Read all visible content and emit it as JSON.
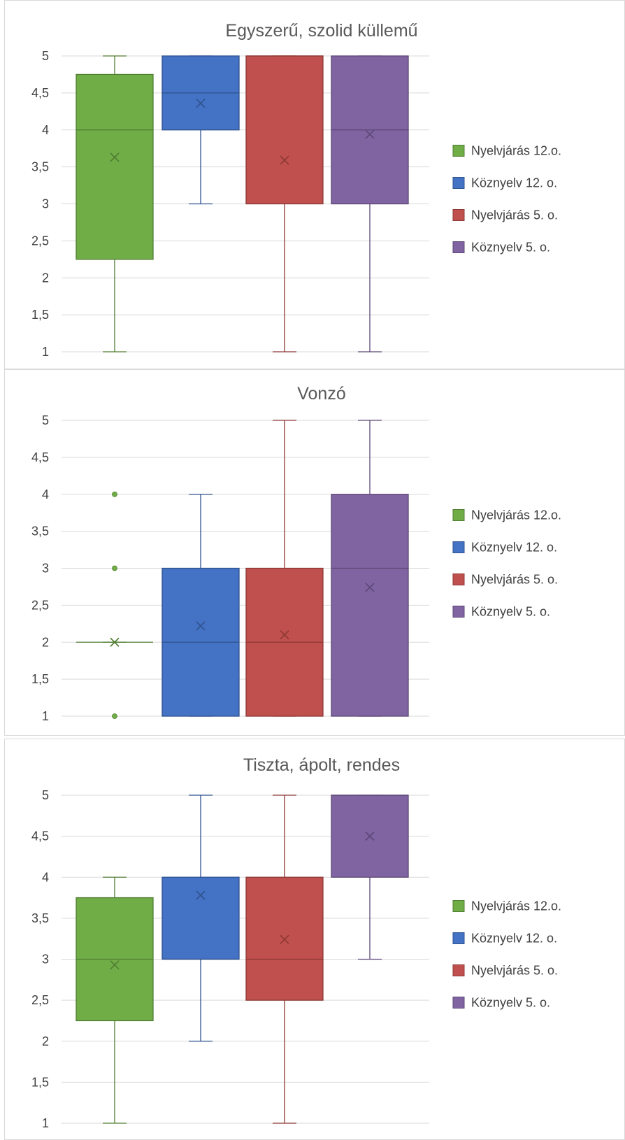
{
  "chart_data": [
    {
      "type": "boxplot",
      "title": "Egyszerű, szolid küllemű",
      "ylim": [
        1,
        5
      ],
      "yticks": [
        "1",
        "1,5",
        "2",
        "2,5",
        "3",
        "3,5",
        "4",
        "4,5",
        "5"
      ],
      "grid": true,
      "legend_position": "right",
      "series": [
        {
          "name": "Nyelvjárás 12.o.",
          "color": "#70ad47",
          "stroke": "#507e32",
          "min": 1,
          "q1": 2.25,
          "median": 4,
          "q3": 4.75,
          "max": 5,
          "mean": 3.63,
          "outliers": []
        },
        {
          "name": "Köznyelv 12. o.",
          "color": "#4472c4",
          "stroke": "#2f528f",
          "min": 3,
          "q1": 4,
          "median": 4.5,
          "q3": 5,
          "max": 5,
          "mean": 4.36,
          "outliers": []
        },
        {
          "name": "Nyelvjárás 5. o.",
          "color": "#c0504d",
          "stroke": "#8c3836",
          "min": 1,
          "q1": 3,
          "median": 5,
          "q3": 5,
          "max": 5,
          "mean": 3.59,
          "outliers": []
        },
        {
          "name": "Köznyelv 5. o.",
          "color": "#8064a2",
          "stroke": "#5c4776",
          "min": 1,
          "q1": 3,
          "median": 4,
          "q3": 5,
          "max": 5,
          "mean": 3.94,
          "outliers": []
        }
      ]
    },
    {
      "type": "boxplot",
      "title": "Vonzó",
      "ylim": [
        1,
        5
      ],
      "yticks": [
        "1",
        "1,5",
        "2",
        "2,5",
        "3",
        "3,5",
        "4",
        "4,5",
        "5"
      ],
      "grid": true,
      "legend_position": "right",
      "series": [
        {
          "name": "Nyelvjárás 12.o.",
          "color": "#70ad47",
          "stroke": "#507e32",
          "min": 2,
          "q1": 2,
          "median": 2,
          "q3": 2,
          "max": 2,
          "mean": 2,
          "outliers": [
            1,
            3,
            4
          ]
        },
        {
          "name": "Köznyelv 12. o.",
          "color": "#4472c4",
          "stroke": "#2f528f",
          "min": 1,
          "q1": 1,
          "median": 2,
          "q3": 3,
          "max": 4,
          "mean": 2.22,
          "outliers": []
        },
        {
          "name": "Nyelvjárás 5. o.",
          "color": "#c0504d",
          "stroke": "#8c3836",
          "min": 1,
          "q1": 1,
          "median": 2,
          "q3": 3,
          "max": 5,
          "mean": 2.1,
          "outliers": []
        },
        {
          "name": "Köznyelv 5. o.",
          "color": "#8064a2",
          "stroke": "#5c4776",
          "min": 1,
          "q1": 1,
          "median": 3,
          "q3": 4,
          "max": 5,
          "mean": 2.74,
          "outliers": []
        }
      ]
    },
    {
      "type": "boxplot",
      "title": "Tiszta, ápolt, rendes",
      "ylim": [
        1,
        5
      ],
      "yticks": [
        "1",
        "1,5",
        "2",
        "2,5",
        "3",
        "3,5",
        "4",
        "4,5",
        "5"
      ],
      "grid": true,
      "legend_position": "right",
      "series": [
        {
          "name": "Nyelvjárás 12.o.",
          "color": "#70ad47",
          "stroke": "#507e32",
          "min": 1,
          "q1": 2.25,
          "median": 3,
          "q3": 3.75,
          "max": 4,
          "mean": 2.93,
          "outliers": []
        },
        {
          "name": "Köznyelv 12. o.",
          "color": "#4472c4",
          "stroke": "#2f528f",
          "min": 2,
          "q1": 3,
          "median": 3,
          "q3": 4,
          "max": 5,
          "mean": 3.78,
          "outliers": []
        },
        {
          "name": "Nyelvjárás 5. o.",
          "color": "#c0504d",
          "stroke": "#8c3836",
          "min": 1,
          "q1": 2.5,
          "median": 3,
          "q3": 4,
          "max": 5,
          "mean": 3.24,
          "outliers": []
        },
        {
          "name": "Köznyelv 5. o.",
          "color": "#8064a2",
          "stroke": "#5c4776",
          "min": 3,
          "q1": 4,
          "median": 5,
          "q3": 5,
          "max": 5,
          "mean": 4.5,
          "outliers": []
        }
      ]
    }
  ]
}
